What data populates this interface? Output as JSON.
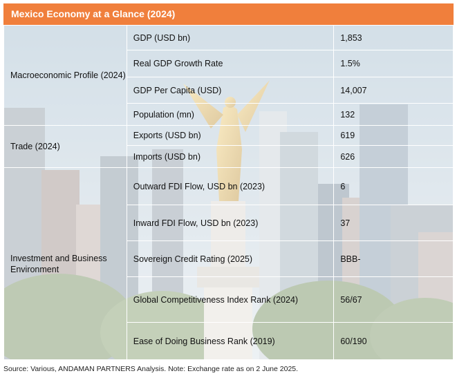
{
  "title": "Mexico Economy at a Glance (2024)",
  "categories": {
    "macro": "Macroeconomic Profile (2024)",
    "trade": "Trade (2024)",
    "investment": "Investment and Business Environment"
  },
  "rows": [
    {
      "label": "GDP (USD bn)",
      "value": "1,853"
    },
    {
      "label": "Real GDP Growth Rate",
      "value": "1.5%"
    },
    {
      "label": "GDP Per Capita (USD)",
      "value": "14,007"
    },
    {
      "label": "Population (mn)",
      "value": "132"
    },
    {
      "label": "Exports (USD bn)",
      "value": "619"
    },
    {
      "label": "Imports (USD bn)",
      "value": "626"
    },
    {
      "label": "Outward FDI Flow, USD bn (2023)",
      "value": "6"
    },
    {
      "label": "Inward FDI Flow, USD bn (2023)",
      "value": "37"
    },
    {
      "label": "Sovereign Credit Rating (2025)",
      "value": "BBB-"
    },
    {
      "label": "Global Competitiveness Index Rank (2024)",
      "value": "56/67"
    },
    {
      "label": "Ease of Doing Business Rank (2019)",
      "value": "60/190"
    }
  ],
  "source": "Source: Various, ANDAMAN PARTNERS Analysis. Note: Exchange rate as on 2 June 2025.",
  "colors": {
    "title_bar": "#f07f3c",
    "title_text": "#ffffff"
  }
}
